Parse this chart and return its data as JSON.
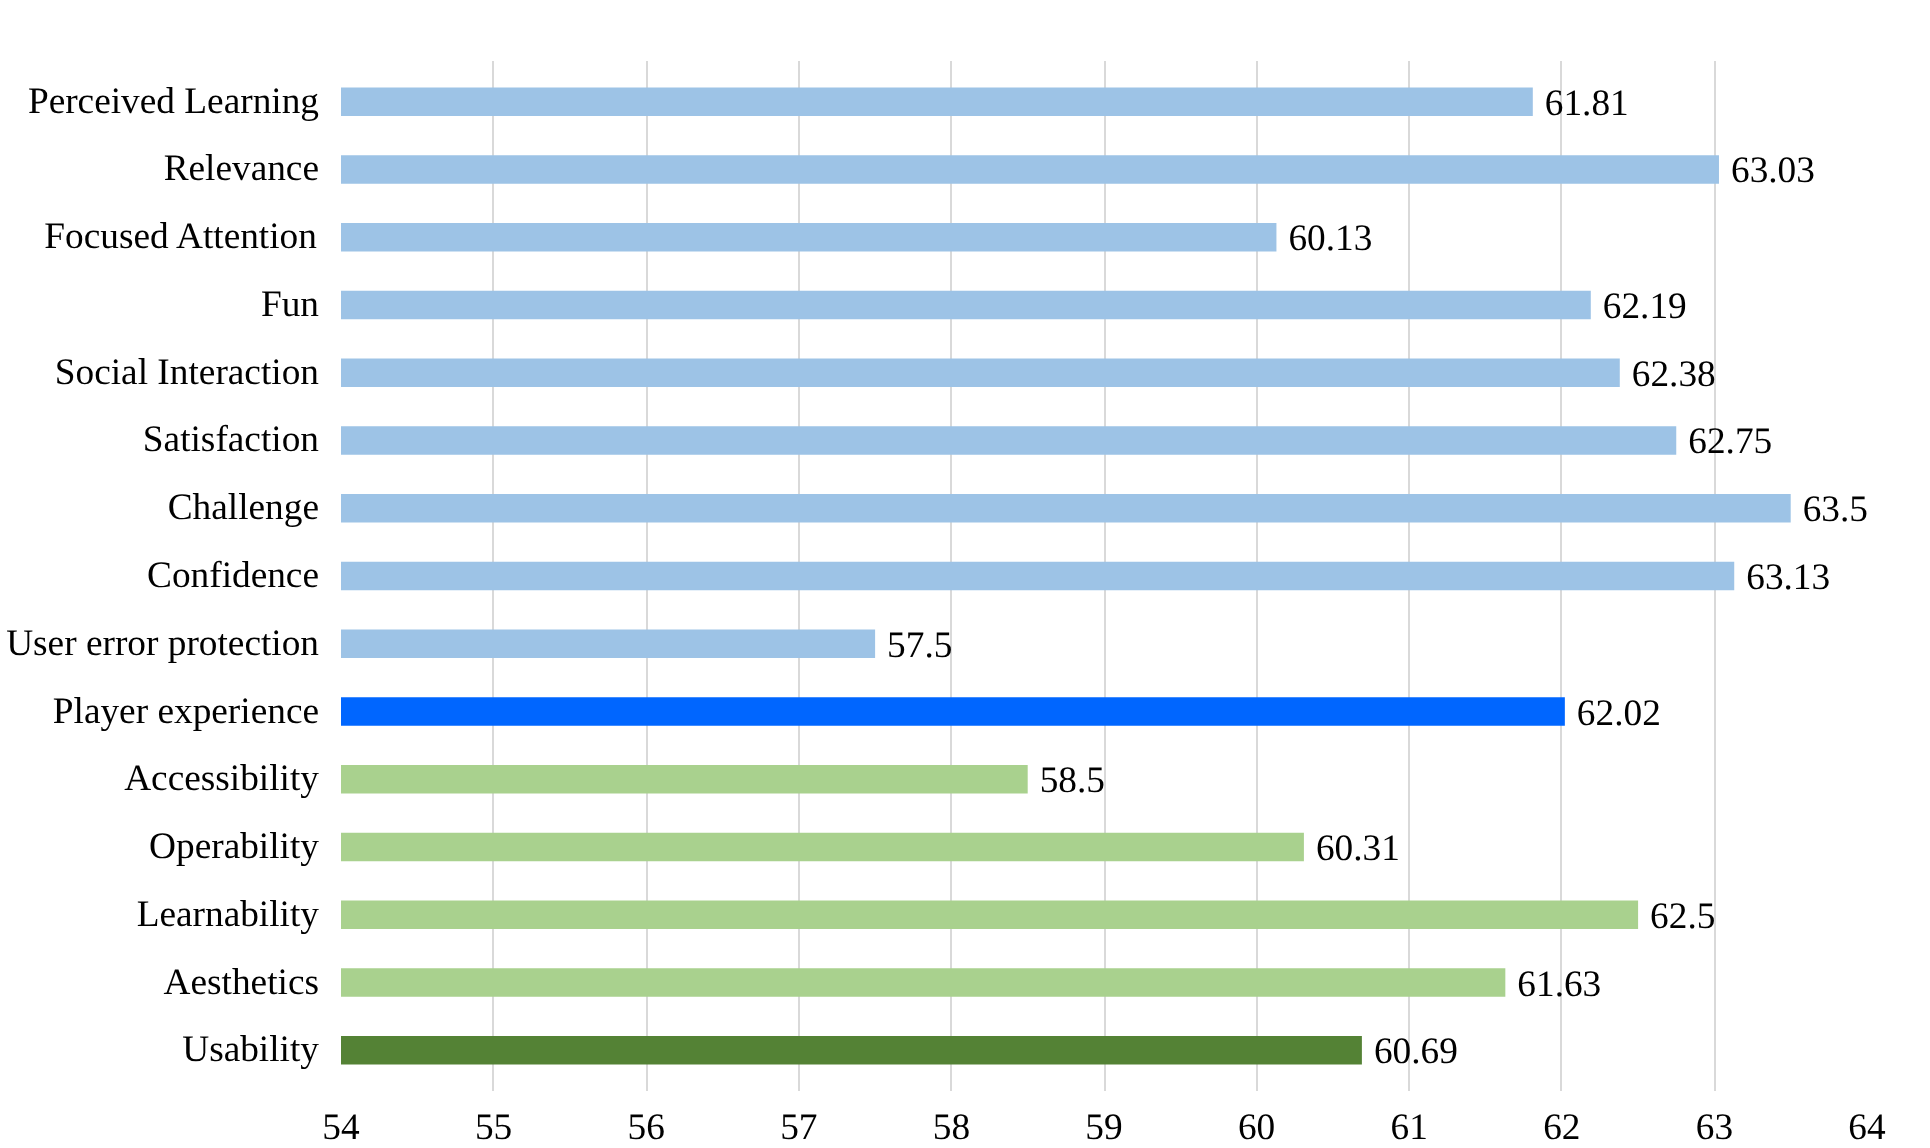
{
  "chart_data": {
    "type": "bar",
    "orientation": "horizontal",
    "categories": [
      "Perceived Learning",
      "Relevance",
      "Focused Attention",
      "Fun",
      "Social Interaction",
      "Satisfaction",
      "Challenge",
      "Confidence",
      "User error protection",
      "Player experience",
      "Accessibility",
      "Operability",
      "Learnability",
      "Aesthetics",
      "Usability"
    ],
    "values": [
      61.81,
      63.03,
      60.13,
      62.19,
      62.38,
      62.75,
      63.5,
      63.13,
      57.5,
      62.02,
      58.5,
      60.31,
      62.5,
      61.63,
      60.69
    ],
    "colors": [
      "#9dc3e6",
      "#9dc3e6",
      "#9dc3e6",
      "#9dc3e6",
      "#9dc3e6",
      "#9dc3e6",
      "#9dc3e6",
      "#9dc3e6",
      "#9dc3e6",
      "#0066ff",
      "#a9d18e",
      "#a9d18e",
      "#a9d18e",
      "#a9d18e",
      "#548235"
    ],
    "xlim": [
      54,
      64
    ],
    "xticks": [
      54,
      55,
      56,
      57,
      58,
      59,
      60,
      61,
      62,
      63,
      64
    ],
    "grid": "x",
    "data_labels": true
  }
}
